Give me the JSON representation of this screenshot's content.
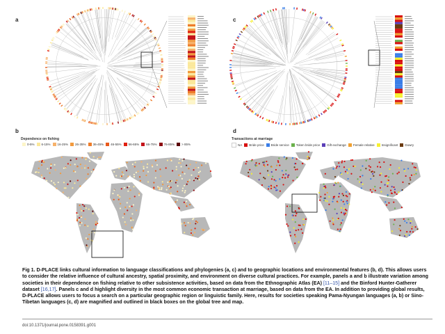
{
  "panels": {
    "a": "a",
    "b": "b",
    "c": "c",
    "d": "d"
  },
  "legend_b": {
    "title": "Dependence on fishing",
    "items": [
      {
        "label": "0-5%",
        "color": "#fdf5c8"
      },
      {
        "label": "6-15%",
        "color": "#fbe89a"
      },
      {
        "label": "16-25%",
        "color": "#f6b26b"
      },
      {
        "label": "26-35%",
        "color": "#f29a3e"
      },
      {
        "label": "36-45%",
        "color": "#ee7d2a"
      },
      {
        "label": "46-55%",
        "color": "#e85a1c"
      },
      {
        "label": "56-65%",
        "color": "#e02010"
      },
      {
        "label": "66-75%",
        "color": "#c4141a"
      },
      {
        "label": "76-85%",
        "color": "#8c0c12"
      },
      {
        "label": "> 85%",
        "color": "#5a0508"
      }
    ]
  },
  "legend_d": {
    "title": "Transactions at marriage",
    "items": [
      {
        "label": "NA",
        "color": "#ffffff"
      },
      {
        "label": "Bride price",
        "color": "#d81010"
      },
      {
        "label": "Bride service",
        "color": "#3a7ee8"
      },
      {
        "label": "Token bride price",
        "color": "#6ab04c"
      },
      {
        "label": "Gift exchange",
        "color": "#5b3fb8"
      },
      {
        "label": "Female relative",
        "color": "#f0a030"
      },
      {
        "label": "Insignificant",
        "color": "#f6f030"
      },
      {
        "label": "Dowry",
        "color": "#6b3a10"
      }
    ]
  },
  "caption": {
    "fig": "Fig 1.",
    "p1": " D-PLACE links cultural information to language classifications and phylogenies (a, c) and to geographic locations and environmental features (b, d). This allows users to consider the relative influence of cultural ancestry, spatial proximity, and environment on diverse cultural practices. For example, panels a and b illustrate variation among societies in their dependence on fishing relative to other subsistence activities, based on data from the Ethnographic Atlas (EA) ",
    "ref1": "[11–15]",
    "p2": " and the Binford Hunter-Gatherer dataset ",
    "ref2": "[16,17]",
    "p3": ". Panels c and d highlight diversity in the most common economic transaction at marriage, based on data from the EA. In addition to providing global results, D-PLACE allows users to focus a search on a particular geographic region or linguistic family. Here, results for societies speaking Pama-Nyungan languages (a, b) or Sino-Tibetan languages (c, d) are magnified and outlined in black boxes on the global tree and map."
  },
  "doi": "doi:10.1371/journal.pone.0158391.g001"
}
